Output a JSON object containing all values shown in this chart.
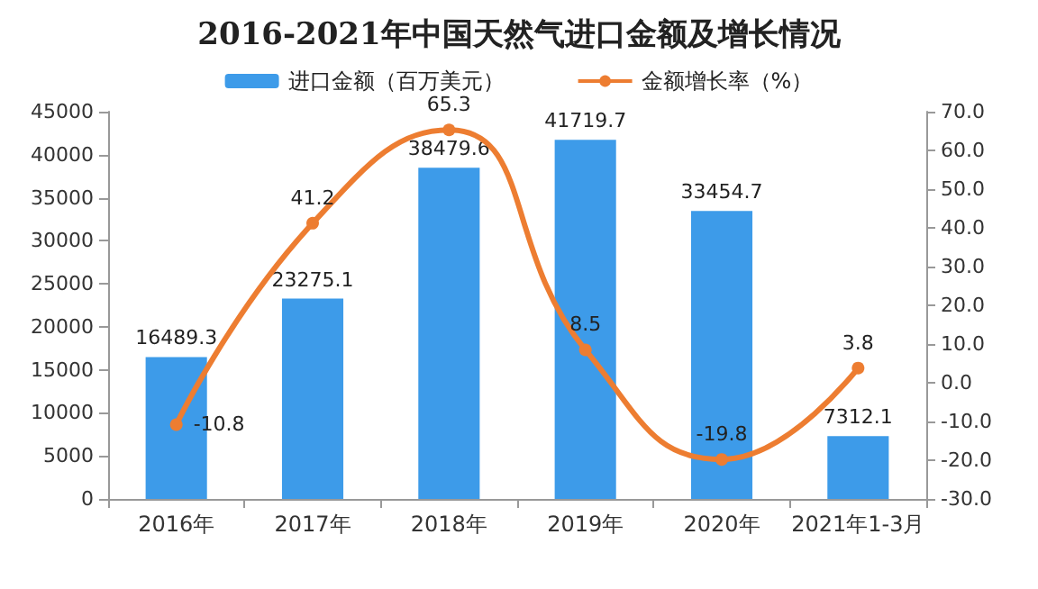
{
  "chart_data": {
    "type": "bar",
    "title": "2016-2021年中国天然气进口金额及增长情况",
    "categories": [
      "2016年",
      "2017年",
      "2018年",
      "2019年",
      "2020年",
      "2021年1-3月"
    ],
    "series": [
      {
        "name": "进口金额（百万美元）",
        "color": "#3d9be9",
        "values": [
          16489.3,
          23275.1,
          38479.6,
          41719.7,
          33454.7,
          7312.1
        ]
      },
      {
        "name": "金额增长率（%）",
        "type": "line",
        "axis": "y2",
        "color": "#ed7d31",
        "values": [
          -10.8,
          41.2,
          65.3,
          8.5,
          -19.8,
          3.8
        ]
      }
    ],
    "ylim": [
      0,
      45000
    ],
    "yticks": [
      0,
      5000,
      10000,
      15000,
      20000,
      25000,
      30000,
      35000,
      40000,
      45000
    ],
    "y2lim": [
      -30,
      70
    ],
    "y2ticks": [
      {
        "value": -30,
        "label": "-30.0"
      },
      {
        "value": -20,
        "label": "-20.0"
      },
      {
        "value": -10,
        "label": "-10.0"
      },
      {
        "value": 0,
        "label": "0.0"
      },
      {
        "value": 10,
        "label": "10.0"
      },
      {
        "value": 20,
        "label": "20.0"
      },
      {
        "value": 30,
        "label": "30.0"
      },
      {
        "value": 40,
        "label": "40.0"
      },
      {
        "value": 50,
        "label": "50.0"
      },
      {
        "value": 60,
        "label": "60.0"
      },
      {
        "value": 70,
        "label": "70.0"
      }
    ],
    "data_labels": true,
    "legend": "top",
    "marker": "circle",
    "grid": false
  }
}
